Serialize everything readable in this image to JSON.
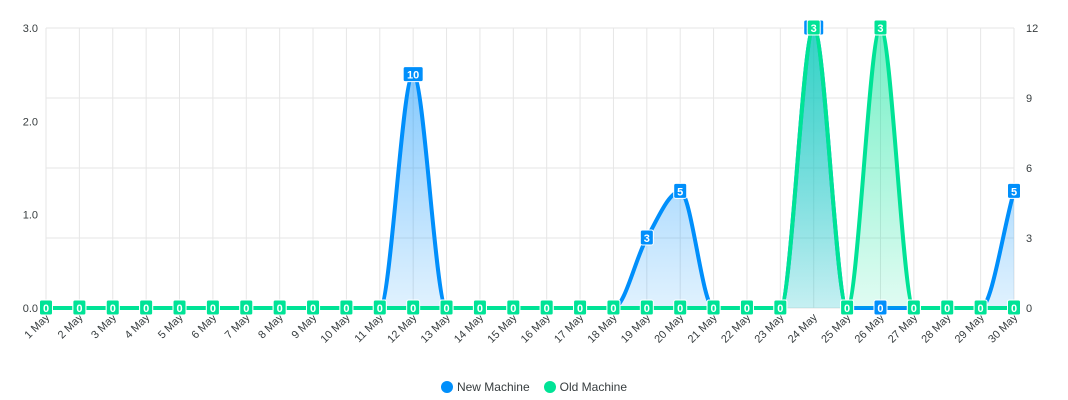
{
  "chart_data": {
    "type": "area",
    "categories": [
      "1 May",
      "2 May",
      "3 May",
      "4 May",
      "5 May",
      "6 May",
      "7 May",
      "8 May",
      "9 May",
      "10 May",
      "11 May",
      "12 May",
      "13 May",
      "14 May",
      "15 May",
      "16 May",
      "17 May",
      "18 May",
      "19 May",
      "20 May",
      "21 May",
      "22 May",
      "23 May",
      "24 May",
      "25 May",
      "26 May",
      "27 May",
      "28 May",
      "29 May",
      "30 May"
    ],
    "series": [
      {
        "name": "New Machine",
        "axis": "right",
        "color": "#008ffb",
        "values": [
          0,
          0,
          0,
          0,
          0,
          0,
          0,
          0,
          0,
          0,
          0,
          10,
          0,
          0,
          0,
          0,
          0,
          0,
          3,
          5,
          0,
          0,
          0,
          12,
          0,
          0,
          0,
          0,
          0,
          5
        ]
      },
      {
        "name": "Old Machine",
        "axis": "left",
        "color": "#00e396",
        "values": [
          0,
          0,
          0,
          0,
          0,
          0,
          0,
          0,
          0,
          0,
          0,
          0,
          0,
          0,
          0,
          0,
          0,
          0,
          0,
          0,
          0,
          0,
          0,
          3,
          0,
          3,
          0,
          0,
          0,
          0
        ]
      }
    ],
    "yaxis_left": {
      "min": 0,
      "max": 3,
      "ticks": [
        "0.0",
        "1.0",
        "2.0",
        "3.0"
      ]
    },
    "yaxis_right": {
      "min": 0,
      "max": 12,
      "ticks": [
        "0",
        "3",
        "6",
        "9",
        "12"
      ]
    },
    "grid": true,
    "legend_position": "bottom"
  },
  "legend": {
    "items": [
      {
        "label": "New Machine",
        "color": "#008ffb"
      },
      {
        "label": "Old Machine",
        "color": "#00e396"
      }
    ]
  }
}
